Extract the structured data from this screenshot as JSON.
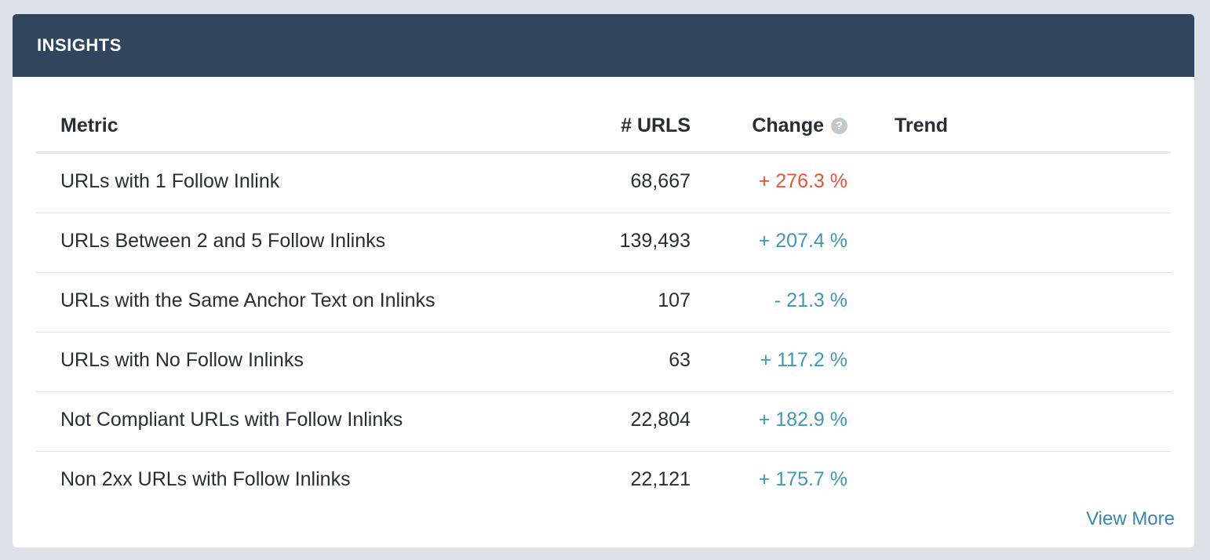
{
  "card": {
    "title": "INSIGHTS"
  },
  "table": {
    "headers": {
      "metric": "Metric",
      "urls": "# URLS",
      "change": "Change",
      "trend": "Trend"
    },
    "help_icon_glyph": "?",
    "rows": [
      {
        "metric": "URLs with 1 Follow Inlink",
        "urls": "68,667",
        "change": "+ 276.3 %",
        "change_color": "#e5563a"
      },
      {
        "metric": "URLs Between 2 and 5 Follow Inlinks",
        "urls": "139,493",
        "change": "+ 207.4 %",
        "change_color": "#4198b3"
      },
      {
        "metric": "URLs with the Same Anchor Text on Inlinks",
        "urls": "107",
        "change": "- 21.3 %",
        "change_color": "#4198b3"
      },
      {
        "metric": "URLs with No Follow Inlinks",
        "urls": "63",
        "change": "+ 117.2 %",
        "change_color": "#4198b3"
      },
      {
        "metric": "Not Compliant URLs with Follow Inlinks",
        "urls": "22,804",
        "change": "+ 182.9 %",
        "change_color": "#4198b3"
      },
      {
        "metric": "Non 2xx URLs with Follow Inlinks",
        "urls": "22,121",
        "change": "+ 175.7 %",
        "change_color": "#4198b3"
      }
    ]
  },
  "footer": {
    "view_more": "View More"
  },
  "colors": {
    "header_bg": "#2f465e",
    "page_bg": "#dde2e8",
    "link": "#3a86b0"
  }
}
